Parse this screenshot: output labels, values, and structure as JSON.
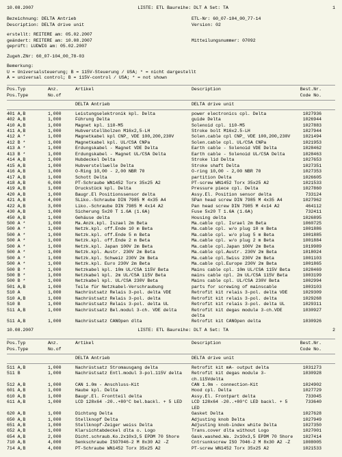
{
  "header": {
    "date": "10.08.2007",
    "title": "LISTE: ETL  Baureihe: DLT A  Set: TA",
    "page": "1"
  },
  "meta": {
    "bez_l": "Bezeichnung: DELTA Antrieb",
    "bez_r": "ETL-Nr: 60_07-104_00_77-14",
    "desc_l": "Description: DELTA drive unit",
    "desc_r": "Version: 02",
    "er1": "erstellt: REITERE   am: 05.02.2007",
    "er2": "geändert: REITERE   am: 10.08.2007",
    "er2r": "Mitteilungsnummer: 07092",
    "er3": "geprüft:  LUDWIG    am: 05.02.2007",
    "zu": "Zugeh.ZNr: 60_07-104_00_78-03",
    "bem": "Bemerkung:",
    "bem1": "          U = Universalsteuerung; B = 115V-Steuerung / USA; * = nicht dargestellt",
    "bem2": "          A = universal control; B = 115V-control / USA; * = not shown"
  },
  "th": {
    "pos": "Pos.Typ",
    "anz": "Anz.",
    "art": "Artikel",
    "desc": "Description",
    "nr": "Best.Nr.",
    "pos2": "Pos.Type",
    "no": "No.of",
    "code": "Code No."
  },
  "grp": {
    "de": "DELTA Antrieb",
    "en": "DELTA drive unit"
  },
  "rows1": [
    [
      "401 A,B",
      "1,000",
      "Leistungselektronik kpl.  Delta",
      "power electronics cpl.  Delta",
      "1027936"
    ],
    [
      "402 A,B",
      "1,000",
      "Führung Delta",
      "guide Delta",
      "1026944"
    ],
    [
      "410 A,B",
      "1,000",
      "Magnet kpl.  110-M5",
      "Solenoid cpl. 110-M5",
      "1027883"
    ],
    [
      "411 A,B",
      "1,000",
      "Hubverstellbolzen M16x2,5-LH",
      "Stroke bolt M16x2.5-LH",
      "1027944"
    ],
    [
      "412 A *",
      "1,000",
      "Magnetkabel kpl CNP_ VDE 100,200,230V",
      "Solen.cable cpl CNP_  VDE 100,200,230V",
      "1021494"
    ],
    [
      "412 B *",
      "1,000",
      "Magnetkabel kpl. UL/CSA  CNPa",
      "Solen.cable cpl. UL/CSA  CNPa",
      "1021953"
    ],
    [
      "413 A *",
      "1,000",
      "Erdungskabel - Magnet  VDE    Delta",
      "Earth cable - Solenoid VDE    Delta",
      "1028462"
    ],
    [
      "413 B *",
      "1,000",
      "Erdungskabel - Magnet UL/CSA  Delta",
      "Earth cable  - Solenoid UL/CSA Delta",
      "1028463"
    ],
    [
      "414 A,B",
      "1,000",
      "Hubdeckel Delta",
      "Stroke lid Delta",
      "1027653"
    ],
    [
      "415 A,B",
      "1,000",
      "Hubverstellwelle Delta",
      "Stroke shaft Delta",
      "1027351"
    ],
    [
      "416 A,B",
      "1,000",
      "O-Ring 10,00 - 2,00   NBR 70",
      "O-ring  10,00 - 2,00  NBR 70",
      "1027353"
    ],
    [
      "417 A,B",
      "1,000",
      "Schott Delta",
      "partition Delta",
      "1026605"
    ],
    [
      "418 A,B",
      "6,000",
      "PT-Schraube WN1452 Torx 35x25  A2",
      "PT-screw   WN1452 Torx 35x25  A2",
      "1021533"
    ],
    [
      "419 A,B",
      "1,000",
      "Druckstück kpl. Delta",
      "Pressure piece  cpl.  Delta",
      "1027860"
    ],
    [
      "420 A,B",
      "1,000",
      "Baugr.El Positionssensor delta",
      "Assy.El. Position sensor delta",
      "733124"
    ],
    [
      "421 A,B",
      "4,000",
      "SLiko.-Schraube DIN 7985 M 4x35  A4",
      "SPan head screw DIN 7985 M 4x35  A4",
      "1027962"
    ],
    [
      "422 A,B",
      "3,000",
      "Liko.-Schraube DIN 7985 M 4x14   A2",
      "Pan head screw DIN 7985 M 4x14    A2",
      "464112"
    ],
    [
      "430 A,B",
      "1,000",
      "Sicherung 5x20 T 1.6A (1.6A)",
      "Fuse  5x20 T 1.6A (1.6A)",
      "732411"
    ],
    [
      "450 A,B",
      "1,000",
      "Gehäuse     delta",
      "Housing     delta",
      "1026895"
    ],
    [
      "500 A *",
      "1,000",
      "Ma.Anzk.kpl. Iszael       2m    Beta",
      "Ma.cable cpl. Israel      2m   Beta",
      "1060725"
    ],
    [
      "500 A *",
      "1,000",
      "Netzk.kpl. off.Ende       10   m Beta",
      "Ma.cable cpl. w/o plug    10   m Beta",
      "1001886"
    ],
    [
      "500 A *",
      "1,000",
      "Netzk.kpl. off.Ende        5   m Beta",
      "Ma.cable cpl. w/o plug     5   m Beta",
      "1001885"
    ],
    [
      "500 A *",
      "1,000",
      "Netzk.kpl. off.Ende        2   m Beta",
      "Ma.cable cpl. w/o plug     2   m Beta",
      "1001884"
    ],
    [
      "500 A *",
      "1,000",
      "Netzk.kpl. Japan  100V 2m      Beta",
      "Ma.cable cpl.Japan 100V 2m     Beta",
      "1019989"
    ],
    [
      "500 A *",
      "1,000",
      "Netzk.kpl. Austr. 230V 2m      Beta",
      "Ma.cable cpl.Austr. 230V 2m    Beta",
      "1018024"
    ],
    [
      "500 A *",
      "1,000",
      "Netzk.kpl. Schweiz 230V 2m     Beta",
      "Ma.cable cpl.Swiss  230V 2m    Beta",
      "1001103"
    ],
    [
      "500 A *",
      "1,000",
      "Netzk.kpl. Euro   230V 2m      Beta",
      "Ma.cable cpl.Europe 230V 2m    Beta",
      "1001865"
    ],
    [
      "500 B *",
      "1,000",
      "Netzkabel kpl. 10m   UL/CSA 115V Beta",
      "Mains cable cpl. 10m  UL/CSA 115V Beta",
      "1028469"
    ],
    [
      "500 B *",
      "1,000",
      "Netzkabel kpl.   2m  UL/CSA 115V Beta",
      "mains cable cpl.  2m  UL/CSA 115V Beta",
      "1003199"
    ],
    [
      "500 B *",
      "1,000",
      "Netzkabel kpl.   UL/CSA 230V Beta",
      "Mains cable cpl.   UL/CSA 230V Beta",
      "1002994"
    ],
    [
      "501 A,B",
      "1,000",
      "Teile für Netzkabel-Verschraubung",
      "parts for screwing of mainscable",
      "1003103"
    ],
    [
      "510 A",
      "1,000",
      "Nachrüstsatz Relais 3-pol. delta VDE",
      "Retrofit kit relais 3-pol. delta VDE",
      "1029309"
    ],
    [
      "510 A,B",
      "1,000",
      "Nachrüstsatz Relais 3-pol. delta",
      "Retrofit kit relais 3-pol. delta",
      "1029268"
    ],
    [
      "510 B",
      "1,000",
      "Nachrüstsatz Relais 3-pol. delta UL",
      "Retrofit kit relais 3-pol. delta UL",
      "1029311"
    ],
    [
      "511 A,B",
      "1,000",
      "Nachrüstsatz Bel.modul 3-ch. VDE delta",
      "Retrofit kit degas module 3-ch.VDE delta",
      "1030927"
    ],
    [
      "511 A,B",
      "1,000",
      "Nachrüstsatz CANOpen dlta",
      "Retrofit kit CANOpen delta",
      "1030926"
    ]
  ],
  "footer": {
    "date": "10.08.2007",
    "title": "LISTE: ETL  Baureihe: DLT A  Set: TA",
    "page": "2"
  },
  "rows2": [
    [
      "511 A,B",
      "1,000",
      "Nachrüstsatz  Stromausgang delta",
      "Retrofit kit mA- output delta",
      "1031273"
    ],
    [
      "511 B",
      "1,000",
      "Nachrüstsatz Entl.modul 3-pol.115V delta",
      "Retrofit kit degas module 3-ch.115Vdelta",
      "1030928"
    ],
    [
      "512 A,B",
      "1,000",
      "CAN 1.0m - Anschluss-Kit",
      "CAN 1.0m - connection-Kit",
      "1024902"
    ],
    [
      "601 A,B",
      "1,000",
      "Haube  kpl. Delta",
      "Hood  cpl.  Delta",
      "1027729"
    ],
    [
      "610 A,B",
      "1,000",
      "Baugr.El. Frontteil delta",
      "Assy.El. Frontpart delta",
      "733045"
    ],
    [
      "611 A,B",
      "1,000",
      "LCD 128x64 -20..+80°C bel.backl. + 5 LED",
      "LCD 128x64 -20..+80°C LED backl. + 5 LED",
      "733640"
    ],
    [
      "620 A,B",
      "1,000",
      "Dichtung Delta",
      "Gasket   Delta",
      "1027628"
    ],
    [
      "650 A,B",
      "1,000",
      "Stellknopf Delta",
      "Adjusting knob Delta",
      "1027949"
    ],
    [
      "651 A,B",
      "1,000",
      "Stellknopf-Zeiger weiss Delta",
      "Adjusting knob-index white Delta",
      "1027350"
    ],
    [
      "652 A,B",
      "1,000",
      "Klarsichtabdeckel dlta o. Logo",
      "Trans.cover dlta without Logo",
      "1027001"
    ],
    [
      "654 A,B",
      "2,000",
      "Dicht.schraub.Ko.2x10x3,5  EPDM 70 Shore",
      "Gask.washed.Wa. 2x10x3,5  EPDM 70 Shore",
      "1027414"
    ],
    [
      "710 A,B",
      "4,000",
      "Senkschraube   ISO7046-2  M 8x30  A2 -Z",
      "Cntrsunkscrew  ISO 7046-2  M 8x30  A2 -Z",
      "1008005"
    ],
    [
      "714 A,B",
      "4,000",
      "PT-Schraube WN1452 Torx 35x25   A2",
      "PT-screw   WN1452 Torx 35x25  A2",
      "1021533"
    ]
  ]
}
